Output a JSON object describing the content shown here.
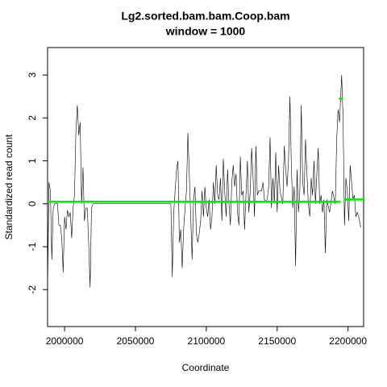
{
  "chart_data": {
    "type": "line",
    "title": "Lg2.sorted.bam.bam.Coop.bam",
    "subtitle": "window = 1000",
    "x_label": "Coordinate",
    "y_label": "Standardized read count",
    "xlim": [
      1988000,
      2211000
    ],
    "ylim": [
      -2.86,
      3.64
    ],
    "xticks": [
      2000000,
      2050000,
      2100000,
      2150000,
      2200000
    ],
    "yticks": [
      -2,
      -1,
      0,
      1,
      2,
      3
    ],
    "x": [
      1988000,
      1989000,
      1990000,
      1991000,
      1992000,
      1993000,
      1995000,
      1996000,
      1997000,
      1998000,
      1999000,
      2000000,
      2001000,
      2002000,
      2003000,
      2004000,
      2005000,
      2006000,
      2007000,
      2008000,
      2009000,
      2010000,
      2011000,
      2012000,
      2013000,
      2014000,
      2015000,
      2016000,
      2017000,
      2018000,
      2019000,
      2020000,
      2075000,
      2076000,
      2077000,
      2078000,
      2079000,
      2080000,
      2081000,
      2082000,
      2083000,
      2084000,
      2085000,
      2086000,
      2087000,
      2088000,
      2089000,
      2090000,
      2091000,
      2092000,
      2093000,
      2094000,
      2095000,
      2096000,
      2097000,
      2098000,
      2099000,
      2100000,
      2101000,
      2102000,
      2103000,
      2104000,
      2105000,
      2106000,
      2107000,
      2108000,
      2109000,
      2110000,
      2111000,
      2112000,
      2113000,
      2114000,
      2115000,
      2116000,
      2117000,
      2118000,
      2119000,
      2120000,
      2121000,
      2122000,
      2123000,
      2124000,
      2125000,
      2126000,
      2127000,
      2128000,
      2129000,
      2130000,
      2131000,
      2132000,
      2133000,
      2134000,
      2135000,
      2136000,
      2137000,
      2138000,
      2139000,
      2140000,
      2141000,
      2142000,
      2143000,
      2144000,
      2145000,
      2146000,
      2147000,
      2148000,
      2149000,
      2150000,
      2151000,
      2152000,
      2153000,
      2154000,
      2155000,
      2156000,
      2157000,
      2158000,
      2159000,
      2160000,
      2161000,
      2162000,
      2163000,
      2164000,
      2165000,
      2166000,
      2167000,
      2168000,
      2169000,
      2170000,
      2171000,
      2172000,
      2173000,
      2174000,
      2175000,
      2176000,
      2177000,
      2178000,
      2179000,
      2180000,
      2181000,
      2182000,
      2183000,
      2184000,
      2185000,
      2187000,
      2189000,
      2191000,
      2192000,
      2193000,
      2194000,
      2195500,
      2196500,
      2197500,
      2198500,
      2199500,
      2200500,
      2201500,
      2202500,
      2203500,
      2204500,
      2205500,
      2206500,
      2207500,
      2209000
    ],
    "series": [
      {
        "name": "Standardized read count",
        "color": "#000000",
        "values": [
          -2.0,
          0.5,
          0.3,
          -1.3,
          -0.1,
          0.0,
          0.0,
          -0.5,
          -0.5,
          -0.8,
          -1.6,
          -0.3,
          -0.6,
          -0.15,
          -0.3,
          -0.2,
          -0.8,
          -0.1,
          0.2,
          1.7,
          2.3,
          1.6,
          1.9,
          0.0,
          0.85,
          -0.4,
          -0.1,
          -0.1,
          -0.9,
          -1.95,
          -0.1,
          0.0,
          0.0,
          -1.7,
          -0.2,
          0.3,
          0.8,
          1.0,
          -0.9,
          -0.6,
          -1.5,
          -0.6,
          -0.1,
          0.3,
          1.65,
          0.7,
          -0.3,
          -1.3,
          0.1,
          0.4,
          -0.7,
          -0.9,
          -0.7,
          -0.4,
          0.3,
          -0.3,
          0.4,
          -0.1,
          -0.3,
          0.1,
          -0.6,
          -0.3,
          0.5,
          0.0,
          0.9,
          0.2,
          0.1,
          0.6,
          -0.4,
          1.05,
          0.3,
          -0.3,
          0.8,
          0.0,
          -0.5,
          0.5,
          0.9,
          0.4,
          0.7,
          -0.2,
          -0.5,
          1.1,
          0.2,
          0.3,
          -0.6,
          0.2,
          1.0,
          -0.2,
          0.3,
          1.3,
          0.6,
          -0.3,
          1.35,
          0.2,
          0.3,
          0.3,
          0.3,
          0.5,
          0.1,
          0.05,
          0.1,
          0.4,
          1.55,
          -0.1,
          0.6,
          0.0,
          1.2,
          -0.2,
          0.9,
          0.3,
          0.15,
          0.0,
          1.35,
          0.8,
          0.4,
          1.0,
          2.5,
          0.9,
          -0.1,
          0.4,
          -1.45,
          0.8,
          -0.2,
          0.3,
          2.3,
          0.5,
          0.2,
          1.5,
          0.7,
          0.0,
          -0.3,
          0.6,
          0.2,
          1.0,
          0.0,
          0.7,
          1.3,
          0.0,
          0.2,
          -0.2,
          0.1,
          -1.15,
          0.1,
          -0.2,
          0.3,
          0.0,
          1.5,
          2.2,
          1.9,
          3.0,
          2.0,
          -0.5,
          0.6,
          0.3,
          -0.4,
          0.9,
          0.5,
          0.1,
          0.2,
          -0.3,
          -0.2,
          -0.3,
          -0.55
        ]
      }
    ],
    "segments_color": "#00ee00",
    "segments": [
      {
        "x": [
          1988000,
          2194900
        ],
        "y": 0.05
      },
      {
        "x": [
          2193500,
          2196500
        ],
        "y": 2.45
      },
      {
        "x": [
          2197000,
          2211000
        ],
        "y": 0.1
      }
    ]
  }
}
